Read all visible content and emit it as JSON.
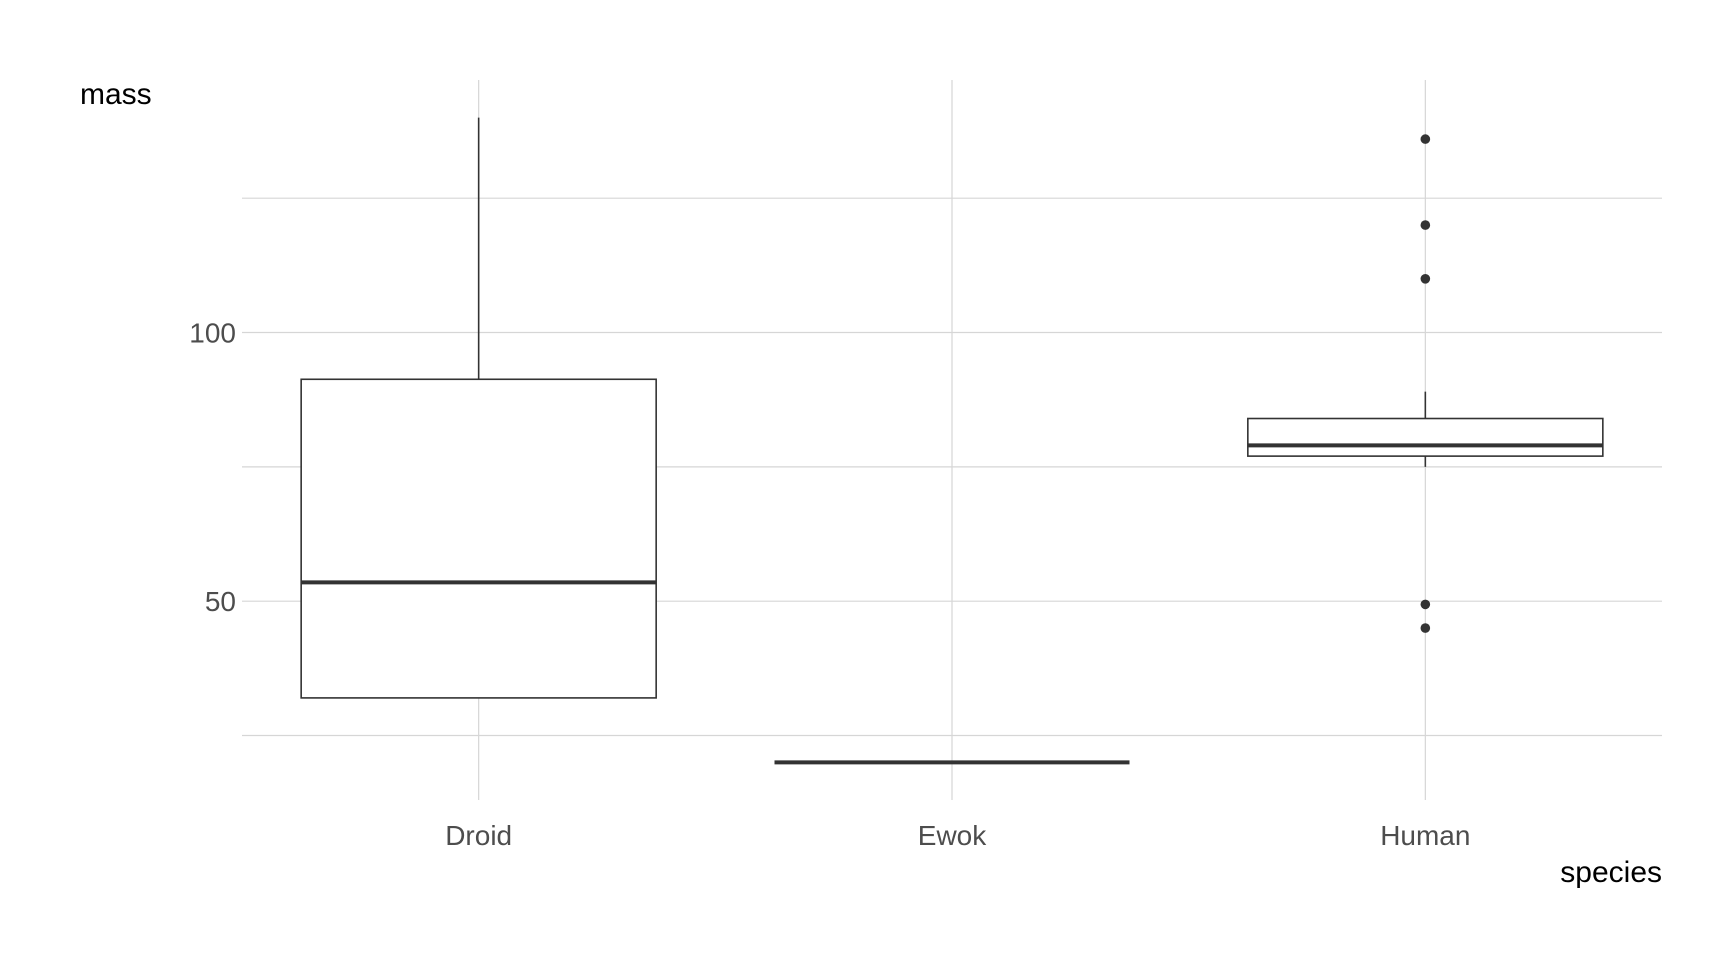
{
  "chart_data": {
    "type": "boxplot",
    "xlabel": "species",
    "ylabel": "mass",
    "categories": [
      "Droid",
      "Ewok",
      "Human"
    ],
    "ylim": [
      13,
      147
    ],
    "y_ticks": [
      50,
      100
    ],
    "y_minor_gridlines": [
      25,
      75,
      125
    ],
    "grid": true,
    "colors": {
      "box_stroke": "#333333",
      "outlier": "#333333",
      "grid": "#d6d6d6",
      "tick_text": "#4d4d4d"
    },
    "boxes": [
      {
        "category": "Droid",
        "min": 32,
        "q1": 32,
        "median": 53.5,
        "q3": 91.3,
        "max": 140,
        "outliers": []
      },
      {
        "category": "Ewok",
        "min": 20,
        "q1": 20,
        "median": 20,
        "q3": 20,
        "max": 20,
        "outliers": []
      },
      {
        "category": "Human",
        "min": 75,
        "q1": 77,
        "median": 79,
        "q3": 84,
        "max": 89,
        "outliers": [
          136,
          120,
          110,
          49.4,
          45
        ]
      }
    ]
  }
}
